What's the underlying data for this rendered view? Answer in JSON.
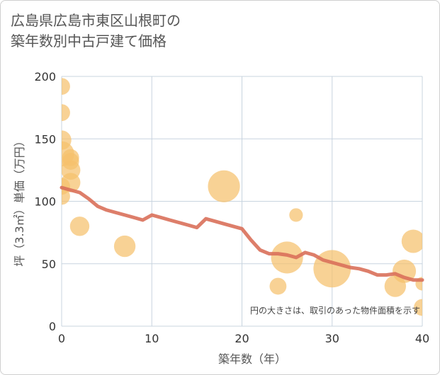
{
  "title_lines": [
    "広島県広島市東区山根町の",
    "築年数別中古戸建て価格"
  ],
  "chart_data": {
    "type": "scatter",
    "xlabel": "築年数（年）",
    "ylabel": "坪（3.3㎡）単価（万円）",
    "xlim": [
      0,
      40
    ],
    "ylim": [
      0,
      200
    ],
    "xticks": [
      0,
      10,
      20,
      30,
      40
    ],
    "yticks": [
      0,
      50,
      100,
      150,
      200
    ],
    "grid": true,
    "annotation": "円の大きさは、取引のあった物件面積を示す",
    "colors": {
      "points": "#f5c16c",
      "trend": "#d9705a",
      "grid": "#c8d4df"
    },
    "points": [
      {
        "x": 0,
        "y": 192,
        "size": 2
      },
      {
        "x": 0,
        "y": 171,
        "size": 2
      },
      {
        "x": 0,
        "y": 149,
        "size": 3
      },
      {
        "x": 0,
        "y": 138,
        "size": 6
      },
      {
        "x": 1,
        "y": 135,
        "size": 2
      },
      {
        "x": 1,
        "y": 132,
        "size": 2
      },
      {
        "x": 1,
        "y": 125,
        "size": 3
      },
      {
        "x": 1,
        "y": 115,
        "size": 3
      },
      {
        "x": 0,
        "y": 112,
        "size": 2
      },
      {
        "x": 0,
        "y": 104,
        "size": 2
      },
      {
        "x": 2,
        "y": 80,
        "size": 3
      },
      {
        "x": 7,
        "y": 64,
        "size": 4
      },
      {
        "x": 18,
        "y": 112,
        "size": 11
      },
      {
        "x": 26,
        "y": 89,
        "size": 1
      },
      {
        "x": 25,
        "y": 55,
        "size": 11
      },
      {
        "x": 24,
        "y": 32,
        "size": 2
      },
      {
        "x": 30,
        "y": 46,
        "size": 16
      },
      {
        "x": 39,
        "y": 68,
        "size": 5
      },
      {
        "x": 38,
        "y": 44,
        "size": 5
      },
      {
        "x": 37,
        "y": 32,
        "size": 4
      },
      {
        "x": 40,
        "y": 34,
        "size": 1
      },
      {
        "x": 40,
        "y": 15,
        "size": 2
      }
    ],
    "trend": {
      "x": [
        0,
        1,
        2,
        3,
        4,
        5,
        6,
        7,
        8,
        9,
        10,
        11,
        12,
        13,
        14,
        15,
        16,
        17,
        18,
        19,
        20,
        21,
        22,
        23,
        24,
        25,
        26,
        27,
        28,
        29,
        30,
        31,
        32,
        33,
        34,
        35,
        36,
        37,
        38,
        39,
        40
      ],
      "y": [
        111,
        109,
        107,
        102,
        96,
        93,
        91,
        89,
        87,
        85,
        89,
        87,
        85,
        83,
        81,
        79,
        86,
        84,
        82,
        80,
        78,
        69,
        61,
        58,
        58,
        57,
        55,
        59,
        57,
        53,
        51,
        49,
        47,
        46,
        44,
        41,
        41,
        42,
        39,
        37,
        37
      ]
    }
  }
}
